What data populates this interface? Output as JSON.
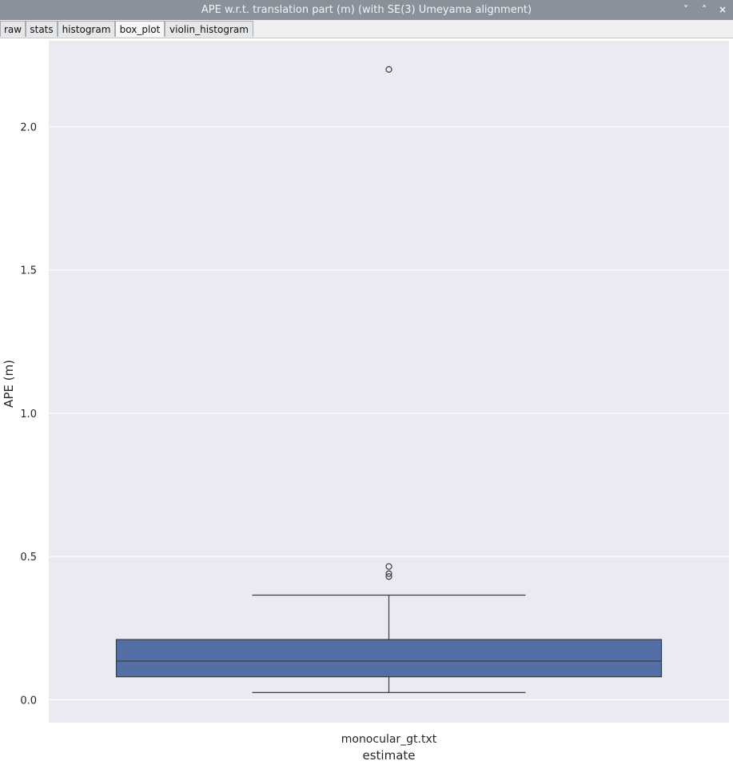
{
  "window": {
    "title": "APE w.r.t. translation part (m) (with SE(3) Umeyama alignment)",
    "controls": [
      "˅",
      "˄",
      "×"
    ]
  },
  "tabs": [
    {
      "label": "raw",
      "active": false
    },
    {
      "label": "stats",
      "active": false
    },
    {
      "label": "histogram",
      "active": false
    },
    {
      "label": "box_plot",
      "active": true
    },
    {
      "label": "violin_histogram",
      "active": false
    }
  ],
  "chart_data": {
    "type": "box",
    "xlabel": "estimate",
    "ylabel": "APE (m)",
    "categories": [
      "monocular_gt.txt"
    ],
    "ylim": [
      -0.08,
      2.3
    ],
    "yticks": [
      0.0,
      0.5,
      1.0,
      1.5,
      2.0
    ],
    "ytick_labels": [
      "0.0",
      "0.5",
      "1.0",
      "1.5",
      "2.0"
    ],
    "grid": true,
    "box": {
      "whisker_low": 0.025,
      "q1": 0.08,
      "median": 0.135,
      "q3": 0.21,
      "whisker_high": 0.365
    },
    "outliers": [
      2.2,
      0.465,
      0.44,
      0.43
    ],
    "colors": {
      "box_fill": "#5370a6",
      "background": "#eaeaf2",
      "grid": "#ffffff",
      "line": "#3b3b3b"
    }
  }
}
